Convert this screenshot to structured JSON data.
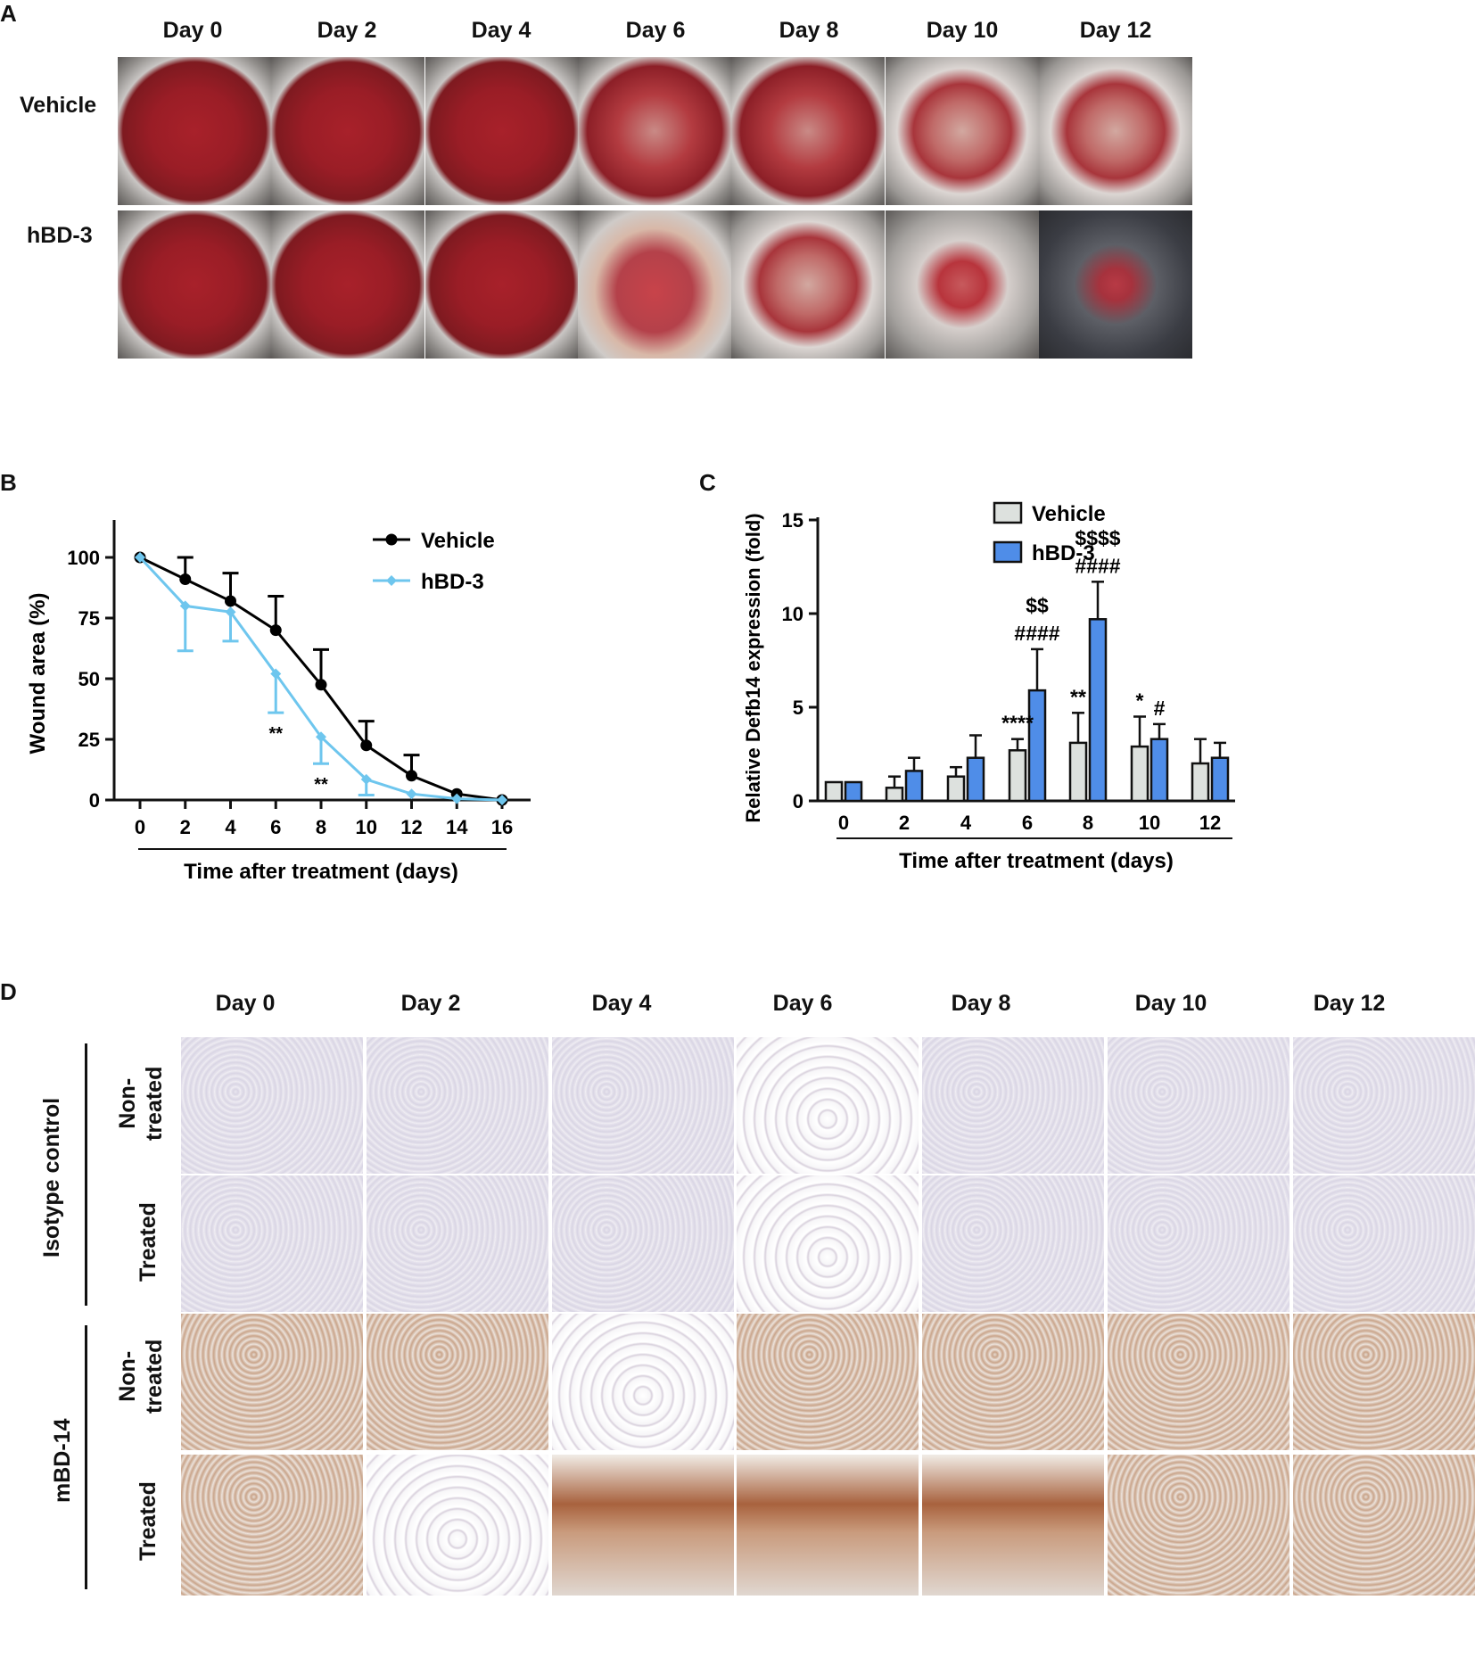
{
  "panels": {
    "a": {
      "label": "A",
      "days": [
        "Day 0",
        "Day 2",
        "Day 4",
        "Day 6",
        "Day 8",
        "Day 10",
        "Day 12"
      ],
      "rows": [
        "Vehicle",
        "hBD-3"
      ]
    },
    "b": {
      "label": "B"
    },
    "c": {
      "label": "C"
    },
    "d": {
      "label": "D",
      "days": [
        "Day 0",
        "Day 2",
        "Day 4",
        "Day 6",
        "Day 8",
        "Day 10",
        "Day 12"
      ],
      "groups": [
        "Isotype control",
        "mBD-14"
      ],
      "rows": [
        "Non-\ntreated",
        "Treated"
      ]
    }
  },
  "chart_data": [
    {
      "type": "line",
      "panel": "B",
      "x": [
        0,
        2,
        4,
        6,
        8,
        10,
        12,
        14,
        16
      ],
      "xlabel": "Time after treatment (days)",
      "ylabel": "Wound area (%)",
      "ylim": [
        0,
        100
      ],
      "yticks": [
        0,
        25,
        50,
        75,
        100
      ],
      "legend_position": "top-right",
      "series": [
        {
          "name": "Vehicle",
          "color": "#000000",
          "values": [
            100,
            91,
            82,
            70,
            47.5,
            22.5,
            10,
            2.5,
            0
          ],
          "errors": [
            0,
            9,
            11.5,
            14,
            14.5,
            10,
            8.5,
            0,
            0
          ]
        },
        {
          "name": "hBD-3",
          "color": "#6ec6ee",
          "values": [
            100,
            80,
            77.5,
            52,
            26,
            8.5,
            2.5,
            0.5,
            0
          ],
          "errors": [
            0,
            18.5,
            12,
            16,
            11,
            6.5,
            0,
            0,
            0
          ]
        }
      ],
      "annotations": [
        {
          "x": 6,
          "text": "**"
        },
        {
          "x": 8,
          "text": "**"
        }
      ]
    },
    {
      "type": "bar",
      "panel": "C",
      "categories": [
        "0",
        "2",
        "4",
        "6",
        "8",
        "10",
        "12"
      ],
      "xlabel": "Time after treatment (days)",
      "ylabel": "Relative Defb14 expression (fold)",
      "ylim": [
        0,
        15
      ],
      "yticks": [
        0,
        5,
        10,
        15
      ],
      "legend_position": "top-right",
      "series": [
        {
          "name": "Vehicle",
          "color": "#dde1de",
          "values": [
            1,
            0.7,
            1.3,
            2.7,
            3.1,
            2.9,
            2.0
          ],
          "errors": [
            0,
            0.6,
            0.5,
            0.6,
            1.6,
            1.6,
            1.3
          ]
        },
        {
          "name": "hBD-3",
          "color": "#4f8de8",
          "values": [
            1,
            1.6,
            2.3,
            5.9,
            9.7,
            3.3,
            2.3
          ],
          "errors": [
            0,
            0.7,
            1.2,
            2.2,
            2.0,
            0.8,
            0.8
          ]
        }
      ],
      "annotations": [
        {
          "category": "6",
          "series": "Vehicle",
          "text": "****"
        },
        {
          "category": "6",
          "series": "hBD-3",
          "text": "####"
        },
        {
          "category": "6",
          "series": "hBD-3",
          "text": "$$"
        },
        {
          "category": "8",
          "series": "Vehicle",
          "text": "**"
        },
        {
          "category": "8",
          "series": "hBD-3",
          "text": "####"
        },
        {
          "category": "8",
          "series": "hBD-3",
          "text": "$$$$"
        },
        {
          "category": "10",
          "series": "Vehicle",
          "text": "*"
        },
        {
          "category": "10",
          "series": "hBD-3",
          "text": "#"
        }
      ]
    }
  ]
}
